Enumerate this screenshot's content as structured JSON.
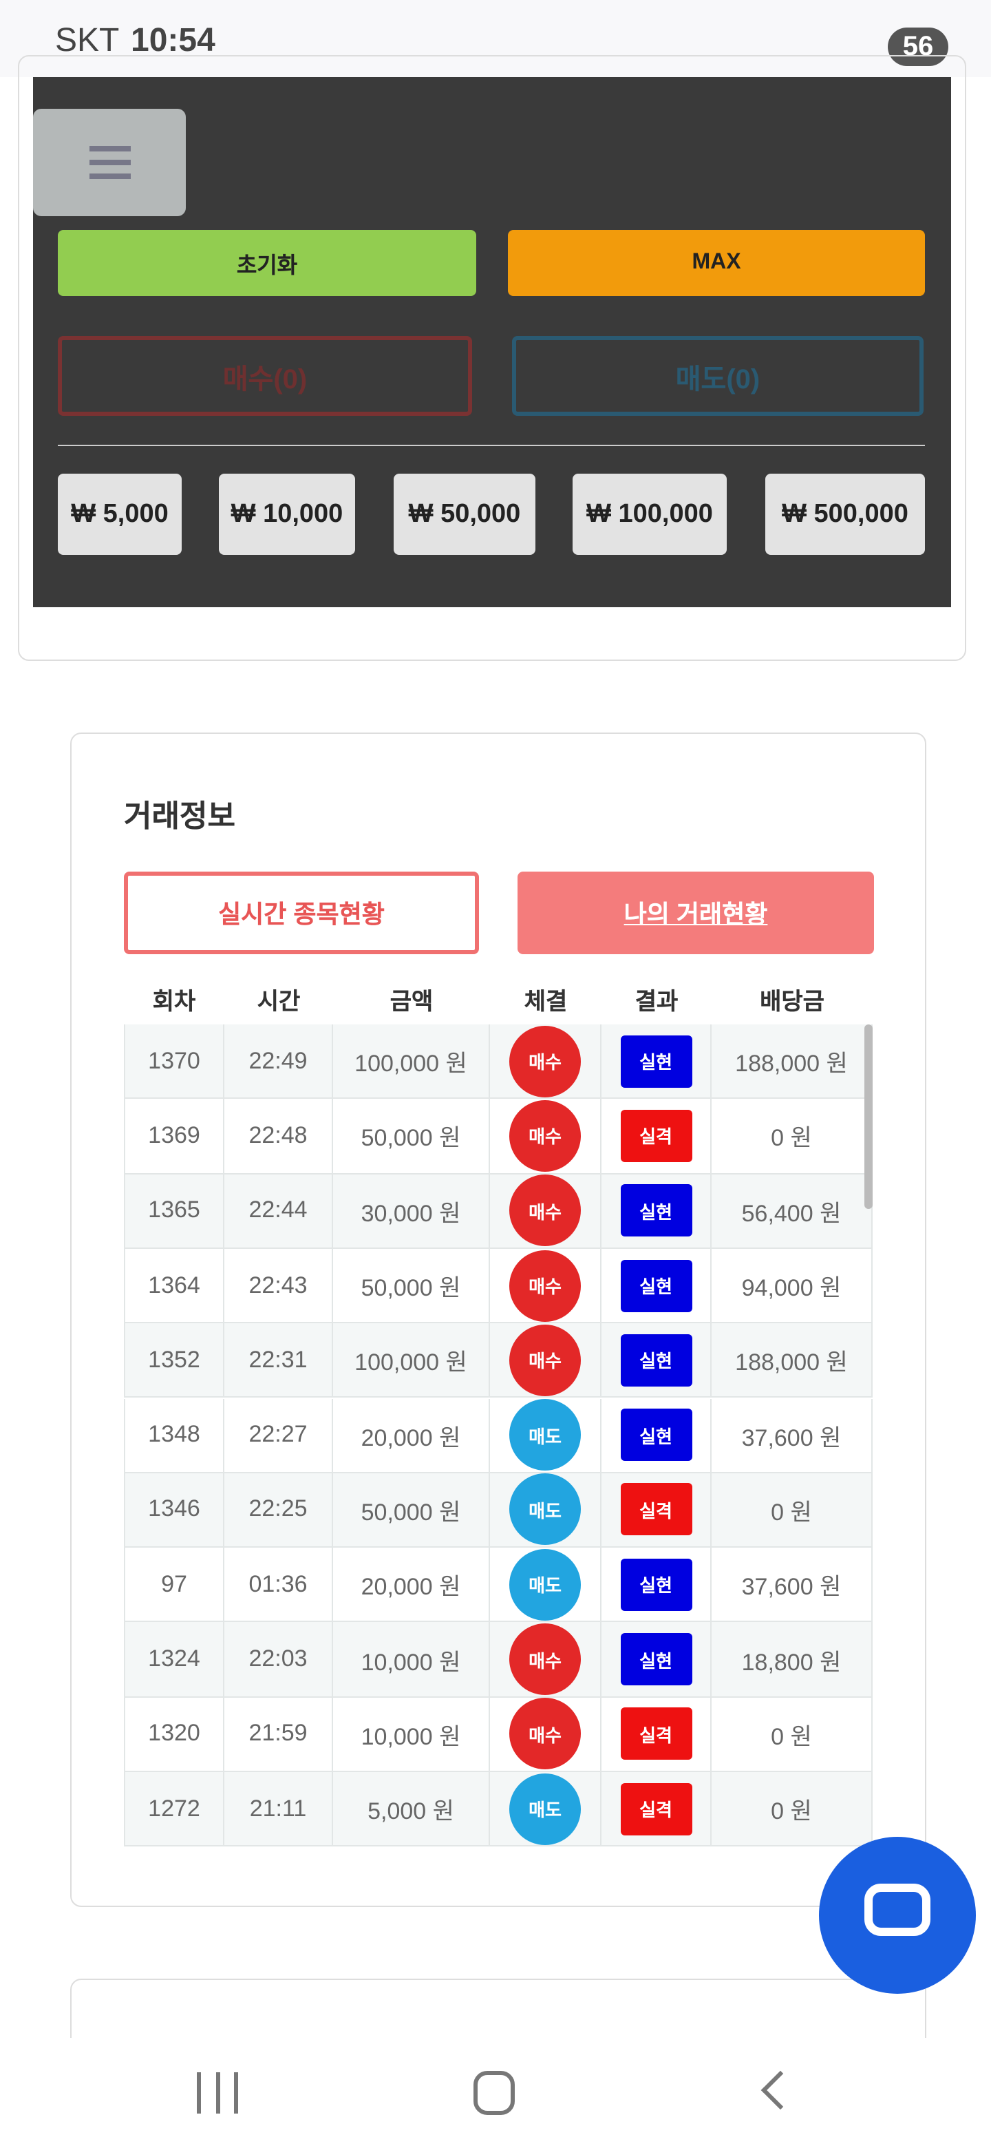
{
  "status": {
    "carrier": "SKT",
    "time": "10:54",
    "battery": "56"
  },
  "controls": {
    "reset": "초기화",
    "max": "MAX",
    "buy": "매수(0)",
    "sell": "매도(0)",
    "amounts": [
      "₩ 5,000",
      "₩ 10,000",
      "₩ 50,000",
      "₩ 100,000",
      "₩ 500,000"
    ]
  },
  "trade": {
    "title": "거래정보",
    "tabs": [
      "실시간 종목현황",
      "나의 거래현황"
    ],
    "headers": [
      "회차",
      "시간",
      "금액",
      "체결",
      "결과",
      "배당금"
    ],
    "rows": [
      [
        "1370",
        "22:49",
        "100,000 원",
        "매수",
        "실현",
        "188,000 원"
      ],
      [
        "1369",
        "22:48",
        "50,000 원",
        "매수",
        "실격",
        "0 원"
      ],
      [
        "1365",
        "22:44",
        "30,000 원",
        "매수",
        "실현",
        "56,400 원"
      ],
      [
        "1364",
        "22:43",
        "50,000 원",
        "매수",
        "실현",
        "94,000 원"
      ],
      [
        "1352",
        "22:31",
        "100,000 원",
        "매수",
        "실현",
        "188,000 원"
      ],
      [
        "1348",
        "22:27",
        "20,000 원",
        "매도",
        "실현",
        "37,600 원"
      ],
      [
        "1346",
        "22:25",
        "50,000 원",
        "매도",
        "실격",
        "0 원"
      ],
      [
        "97",
        "01:36",
        "20,000 원",
        "매도",
        "실현",
        "37,600 원"
      ],
      [
        "1324",
        "22:03",
        "10,000 원",
        "매수",
        "실현",
        "18,800 원"
      ],
      [
        "1320",
        "21:59",
        "10,000 원",
        "매수",
        "실격",
        "0 원"
      ],
      [
        "1272",
        "21:11",
        "5,000 원",
        "매도",
        "실격",
        "0 원"
      ]
    ]
  }
}
